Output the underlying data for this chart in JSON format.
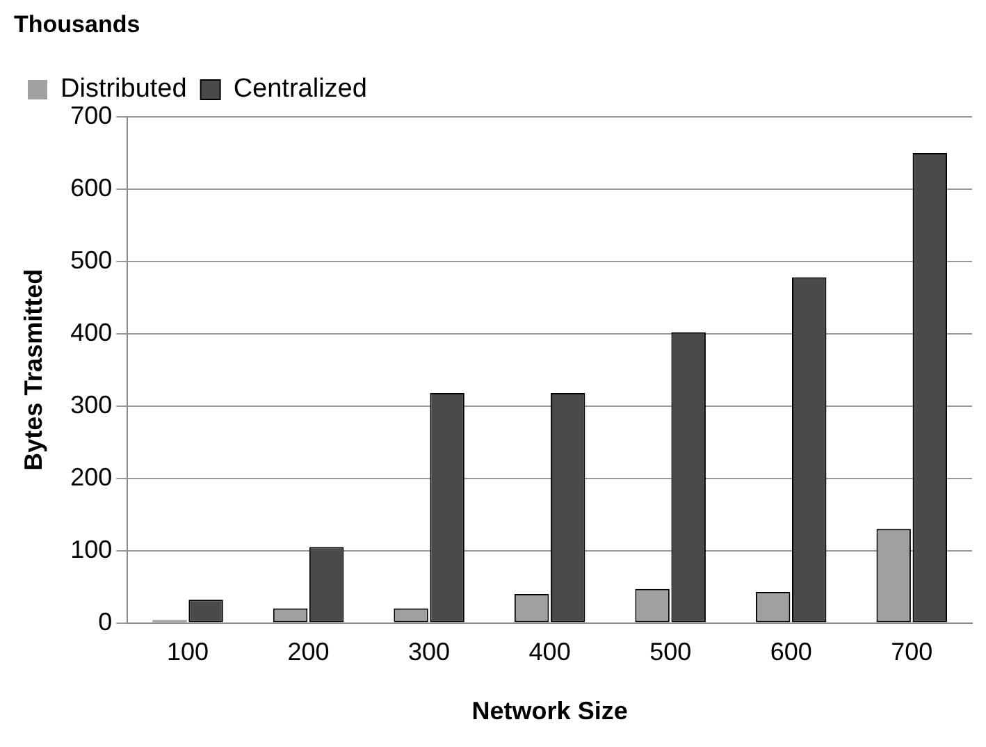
{
  "chart_data": {
    "type": "bar",
    "title": "Thousands",
    "xlabel": "Network Size",
    "ylabel": "Bytes Trasmitted",
    "categories": [
      "100",
      "200",
      "300",
      "400",
      "500",
      "600",
      "700"
    ],
    "series": [
      {
        "name": "Distributed",
        "color": "#a0a0a0",
        "values": [
          4,
          20,
          20,
          40,
          47,
          43,
          130
        ]
      },
      {
        "name": "Centralized",
        "color": "#4a4a4a",
        "values": [
          32,
          105,
          318,
          318,
          402,
          478,
          650
        ]
      }
    ],
    "ylim": [
      0,
      700
    ],
    "yticks": [
      0,
      100,
      200,
      300,
      400,
      500,
      600,
      700
    ],
    "grid": "y",
    "legend": "top left"
  }
}
